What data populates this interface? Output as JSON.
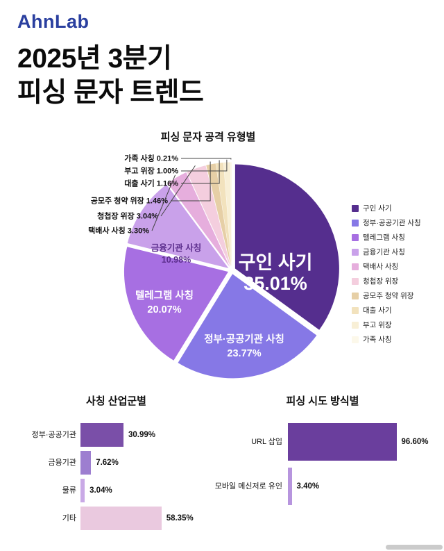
{
  "logo": {
    "text": "AhnLab",
    "color": "#2a3f9f"
  },
  "title": {
    "line1": "2025년 3분기",
    "line2": "피싱 문자 트렌드"
  },
  "colors": {
    "inside_label_light": "#ffffff",
    "inside_label_dark": "#5b2d8c",
    "callout_line": "#444444",
    "text": "#111111"
  },
  "chart_data": [
    {
      "type": "pie",
      "title": "피싱 문자 공격 유형별",
      "legend_position": "right",
      "categories": [
        "구인 사기",
        "정부·공공기관 사칭",
        "텔레그램 사칭",
        "금융기관 사칭",
        "택배사 사칭",
        "청첩장 위장",
        "공모주 청약 위장",
        "대출 사기",
        "부고 위장",
        "가족 사칭"
      ],
      "values": [
        35.01,
        23.77,
        20.07,
        10.98,
        3.3,
        3.04,
        1.46,
        1.16,
        1.0,
        0.21
      ],
      "value_labels": [
        "35.01%",
        "23.77%",
        "20.07%",
        "10.98%",
        "3.30%",
        "3.04%",
        "1.46%",
        "1.16%",
        "1.00%",
        "0.21%"
      ],
      "colors": [
        "#552e8e",
        "#8678e6",
        "#a76fe2",
        "#c9a1ea",
        "#e6aedd",
        "#f4cede",
        "#e6cfa6",
        "#f2e2bd",
        "#f8efd6",
        "#fcf8ea"
      ]
    },
    {
      "type": "bar",
      "orientation": "horizontal",
      "title": "사칭 산업군별",
      "categories": [
        "정부·공공기관",
        "금융기관",
        "물류",
        "기타"
      ],
      "values": [
        30.99,
        7.62,
        3.04,
        58.35
      ],
      "value_labels": [
        "30.99%",
        "7.62%",
        "3.04%",
        "58.35%"
      ],
      "colors": [
        "#7a4fa8",
        "#9d7ed0",
        "#c9a9e6",
        "#eac9df"
      ],
      "xlim": [
        0,
        100
      ],
      "grid": false
    },
    {
      "type": "bar",
      "orientation": "horizontal",
      "title": "피싱 시도 방식별",
      "categories": [
        "URL 삽입",
        "모바일 메신저로 유인"
      ],
      "values": [
        96.6,
        3.4
      ],
      "value_labels": [
        "96.60%",
        "3.40%"
      ],
      "colors": [
        "#6a3e9d",
        "#b795de"
      ],
      "xlim": [
        0,
        100
      ],
      "grid": false
    }
  ]
}
